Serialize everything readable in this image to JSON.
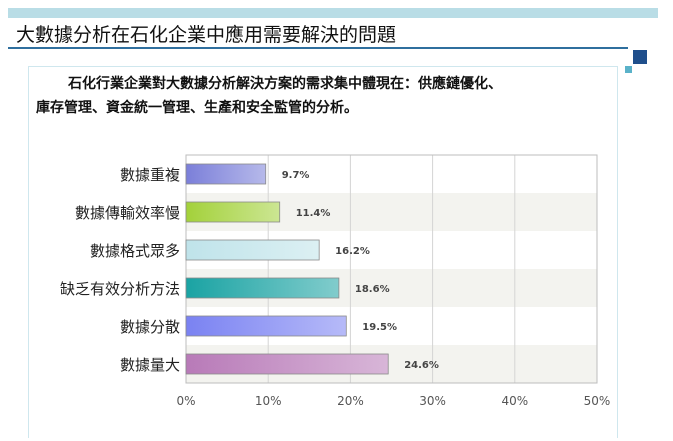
{
  "page": {
    "title": "大數據分析在石化企業中應用需要解決的問題",
    "intro_line1": "石化行業企業對大數據分析解決方案的需求集中體現在：供應鏈優化、",
    "intro_line2": "庫存管理、資金統一管理、生產和安全監管的分析。"
  },
  "chart_data": {
    "type": "bar",
    "orientation": "horizontal",
    "title": "",
    "xlabel": "",
    "ylabel": "",
    "categories": [
      "數據重複",
      "數據傳輸效率慢",
      "數據格式眾多",
      "缺乏有效分析方法",
      "數據分散",
      "數據量大"
    ],
    "values": [
      9.7,
      11.4,
      16.2,
      18.6,
      19.5,
      24.6
    ],
    "value_labels": [
      "9.7%",
      "11.4%",
      "16.2%",
      "18.6%",
      "19.5%",
      "24.6%"
    ],
    "xlim": [
      0,
      50
    ],
    "x_ticks": [
      "0%",
      "10%",
      "20%",
      "30%",
      "40%",
      "50%"
    ],
    "grid": true,
    "legend": "none",
    "bar_colors": [
      "#7b7fd9",
      "#a3d13a",
      "#bfe3ea",
      "#1aa3a3",
      "#7a82f2",
      "#b87ab8"
    ]
  }
}
